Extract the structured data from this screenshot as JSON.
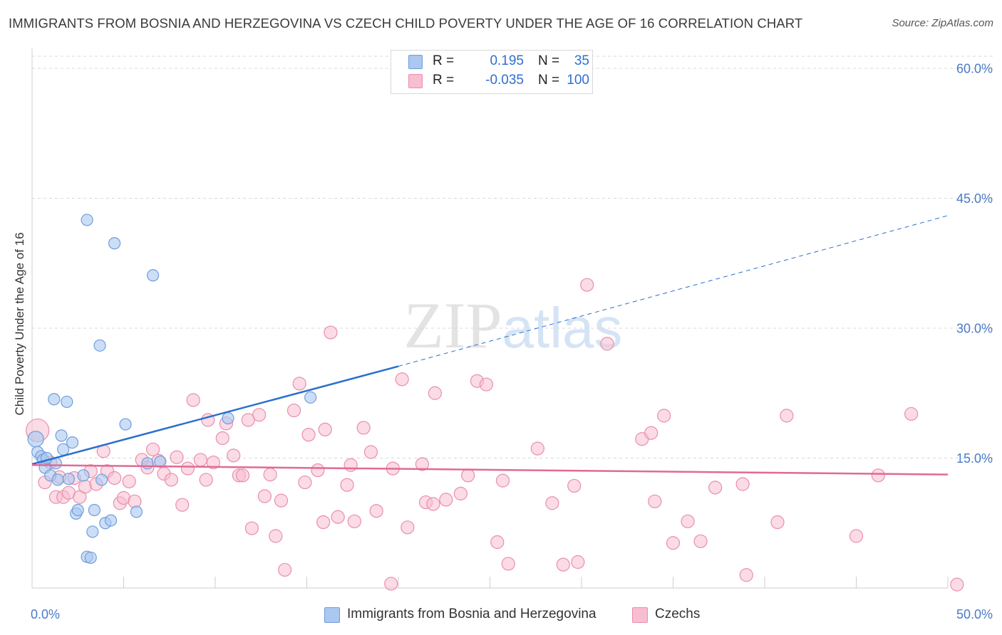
{
  "title": "IMMIGRANTS FROM BOSNIA AND HERZEGOVINA VS CZECH CHILD POVERTY UNDER THE AGE OF 16 CORRELATION CHART",
  "source": "Source: ZipAtlas.com",
  "watermark": "ZIPatlas",
  "colors": {
    "series1_fill": "#aac8f0",
    "series1_stroke": "#6f9ddc",
    "series1_line": "#2a6fd0",
    "series2_fill": "#f7bdd0",
    "series2_stroke": "#e88fac",
    "series2_line": "#e06a95",
    "value_text": "#2f6fd0",
    "grid": "#d9d9d9"
  },
  "legend": {
    "rows": [
      {
        "r_label": "R =",
        "r_value": "0.195",
        "n_label": "N =",
        "n_value": "35"
      },
      {
        "r_label": "R =",
        "r_value": "-0.035",
        "n_label": "N =",
        "n_value": "100"
      }
    ]
  },
  "bottom_legend": [
    "Immigrants from Bosnia and Herzegovina",
    "Czechs"
  ],
  "chart_data": {
    "type": "scatter",
    "title": "IMMIGRANTS FROM BOSNIA AND HERZEGOVINA VS CZECH CHILD POVERTY UNDER THE AGE OF 16 CORRELATION CHART",
    "xlabel": "",
    "ylabel": "Child Poverty Under the Age of 16",
    "xlim": [
      0,
      50
    ],
    "ylim": [
      0,
      60
    ],
    "x_tick_labels": [
      "0.0%",
      "50.0%"
    ],
    "y_ticks": [
      15,
      30,
      45,
      60
    ],
    "y_tick_labels": [
      "15.0%",
      "30.0%",
      "45.0%",
      "60.0%"
    ],
    "grid": true,
    "legend_position": "top-center",
    "series": [
      {
        "name": "Immigrants from Bosnia and Herzegovina",
        "r": 0.195,
        "n": 35,
        "trend": {
          "x0": 0,
          "y0": 14.3,
          "x1": 20,
          "y1": 25.6,
          "dashed_to_x": 50,
          "dashed_to_y": 43.0
        },
        "points": [
          [
            0.2,
            17.2
          ],
          [
            0.3,
            15.7
          ],
          [
            0.5,
            15.2
          ],
          [
            0.6,
            14.8
          ],
          [
            0.7,
            13.9
          ],
          [
            0.8,
            15.0
          ],
          [
            1.0,
            13.0
          ],
          [
            1.2,
            21.8
          ],
          [
            1.3,
            14.4
          ],
          [
            1.4,
            12.5
          ],
          [
            1.6,
            17.6
          ],
          [
            1.7,
            16.0
          ],
          [
            1.9,
            21.5
          ],
          [
            2.0,
            12.6
          ],
          [
            2.2,
            16.8
          ],
          [
            2.4,
            8.6
          ],
          [
            2.5,
            9.0
          ],
          [
            2.8,
            13.0
          ],
          [
            3.0,
            42.5
          ],
          [
            3.0,
            3.6
          ],
          [
            3.2,
            3.5
          ],
          [
            3.3,
            6.5
          ],
          [
            3.4,
            9.0
          ],
          [
            3.7,
            28.0
          ],
          [
            3.8,
            12.5
          ],
          [
            4.0,
            7.5
          ],
          [
            4.3,
            7.8
          ],
          [
            4.5,
            39.8
          ],
          [
            5.1,
            18.9
          ],
          [
            5.7,
            8.8
          ],
          [
            6.3,
            14.4
          ],
          [
            6.6,
            36.1
          ],
          [
            7.0,
            14.6
          ],
          [
            10.7,
            19.6
          ],
          [
            15.2,
            22.0
          ]
        ]
      },
      {
        "name": "Czechs",
        "r": -0.035,
        "n": 100,
        "trend": {
          "x0": 0,
          "y0": 14.2,
          "x1": 50,
          "y1": 13.1
        },
        "points": [
          [
            0.3,
            18.2
          ],
          [
            0.7,
            12.2
          ],
          [
            1.0,
            14.5
          ],
          [
            1.3,
            10.5
          ],
          [
            1.5,
            12.8
          ],
          [
            1.7,
            10.5
          ],
          [
            2.0,
            11.0
          ],
          [
            2.3,
            12.7
          ],
          [
            2.6,
            10.5
          ],
          [
            2.9,
            11.7
          ],
          [
            3.2,
            13.5
          ],
          [
            3.5,
            12.0
          ],
          [
            3.9,
            15.8
          ],
          [
            4.1,
            13.5
          ],
          [
            4.5,
            12.7
          ],
          [
            4.8,
            9.8
          ],
          [
            5.0,
            10.4
          ],
          [
            5.3,
            12.3
          ],
          [
            5.6,
            10.0
          ],
          [
            6.0,
            14.8
          ],
          [
            6.3,
            13.9
          ],
          [
            6.6,
            16.0
          ],
          [
            6.9,
            14.7
          ],
          [
            7.2,
            13.2
          ],
          [
            7.6,
            12.5
          ],
          [
            7.9,
            15.1
          ],
          [
            8.2,
            9.6
          ],
          [
            8.5,
            13.8
          ],
          [
            8.8,
            21.7
          ],
          [
            9.2,
            14.8
          ],
          [
            9.5,
            12.5
          ],
          [
            9.6,
            19.4
          ],
          [
            9.9,
            14.5
          ],
          [
            10.4,
            17.3
          ],
          [
            10.6,
            19.0
          ],
          [
            11.0,
            15.3
          ],
          [
            11.3,
            13.0
          ],
          [
            11.5,
            13.0
          ],
          [
            11.8,
            19.4
          ],
          [
            12.0,
            6.9
          ],
          [
            12.4,
            20.0
          ],
          [
            12.7,
            10.6
          ],
          [
            13.0,
            13.1
          ],
          [
            13.3,
            6.0
          ],
          [
            13.6,
            10.1
          ],
          [
            13.8,
            2.1
          ],
          [
            14.3,
            20.5
          ],
          [
            14.6,
            23.6
          ],
          [
            14.9,
            12.2
          ],
          [
            15.1,
            17.7
          ],
          [
            15.6,
            13.6
          ],
          [
            15.9,
            7.6
          ],
          [
            16.0,
            18.3
          ],
          [
            16.3,
            29.5
          ],
          [
            16.7,
            8.2
          ],
          [
            17.2,
            11.9
          ],
          [
            17.4,
            14.2
          ],
          [
            17.6,
            7.7
          ],
          [
            18.1,
            18.5
          ],
          [
            18.5,
            15.7
          ],
          [
            18.8,
            8.9
          ],
          [
            19.6,
            0.5
          ],
          [
            19.7,
            13.8
          ],
          [
            20.2,
            24.1
          ],
          [
            20.5,
            7.0
          ],
          [
            21.3,
            14.3
          ],
          [
            21.5,
            9.9
          ],
          [
            21.9,
            9.7
          ],
          [
            22.0,
            22.5
          ],
          [
            22.6,
            10.2
          ],
          [
            23.4,
            10.9
          ],
          [
            23.8,
            13.0
          ],
          [
            24.3,
            23.9
          ],
          [
            24.8,
            23.5
          ],
          [
            25.4,
            5.3
          ],
          [
            25.7,
            12.4
          ],
          [
            26.0,
            2.8
          ],
          [
            27.6,
            16.1
          ],
          [
            28.4,
            9.8
          ],
          [
            29.0,
            2.7
          ],
          [
            29.6,
            11.8
          ],
          [
            29.8,
            3.0
          ],
          [
            30.3,
            35.0
          ],
          [
            31.4,
            28.2
          ],
          [
            33.3,
            17.2
          ],
          [
            33.8,
            17.9
          ],
          [
            34.0,
            10.0
          ],
          [
            34.5,
            19.9
          ],
          [
            35.0,
            5.2
          ],
          [
            35.8,
            7.7
          ],
          [
            36.5,
            5.4
          ],
          [
            37.3,
            11.6
          ],
          [
            38.8,
            12.0
          ],
          [
            39.0,
            1.5
          ],
          [
            40.7,
            7.6
          ],
          [
            41.2,
            19.9
          ],
          [
            45.0,
            6.0
          ],
          [
            46.2,
            13.0
          ],
          [
            48.0,
            20.1
          ],
          [
            50.5,
            0.4
          ]
        ]
      }
    ]
  }
}
